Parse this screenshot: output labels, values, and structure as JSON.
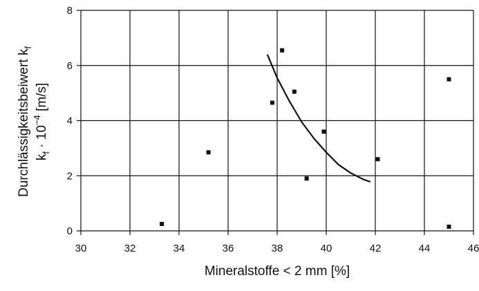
{
  "chart_data": {
    "type": "scatter",
    "title": "",
    "xlabel": "Mineralstoffe  <  2 mm [%]",
    "ylabel_line1": "Durchlässigkeitsbeiwert k",
    "ylabel_line1_sub": "f",
    "ylabel_line2_pre": "k",
    "ylabel_line2_sub": "f",
    "ylabel_line2_mid": " · 10",
    "ylabel_line2_sup": "−4",
    "ylabel_line2_post": " [m/s]",
    "xlim": [
      30,
      46
    ],
    "ylim": [
      0,
      8
    ],
    "xticks": [
      "30",
      "32",
      "34",
      "36",
      "38",
      "40",
      "42",
      "44",
      "46"
    ],
    "yticks": [
      "0",
      "2",
      "4",
      "6",
      "8"
    ],
    "grid": true,
    "colors": {
      "marker": "#111111",
      "grid": "#111111",
      "curve": "#111111"
    },
    "points": [
      {
        "x": 33.3,
        "y": 0.25
      },
      {
        "x": 35.2,
        "y": 2.85
      },
      {
        "x": 37.8,
        "y": 4.65
      },
      {
        "x": 38.2,
        "y": 6.55
      },
      {
        "x": 38.7,
        "y": 5.05
      },
      {
        "x": 39.2,
        "y": 1.9
      },
      {
        "x": 39.9,
        "y": 3.6
      },
      {
        "x": 42.1,
        "y": 2.6
      },
      {
        "x": 45.0,
        "y": 5.5
      },
      {
        "x": 45.0,
        "y": 0.15
      }
    ],
    "trend_curve": [
      {
        "x": 37.6,
        "y": 6.4
      },
      {
        "x": 38.0,
        "y": 5.55
      },
      {
        "x": 38.5,
        "y": 4.7
      },
      {
        "x": 39.0,
        "y": 3.95
      },
      {
        "x": 39.5,
        "y": 3.35
      },
      {
        "x": 40.0,
        "y": 2.85
      },
      {
        "x": 40.5,
        "y": 2.4
      },
      {
        "x": 41.0,
        "y": 2.1
      },
      {
        "x": 41.5,
        "y": 1.87
      },
      {
        "x": 41.8,
        "y": 1.78
      }
    ]
  }
}
